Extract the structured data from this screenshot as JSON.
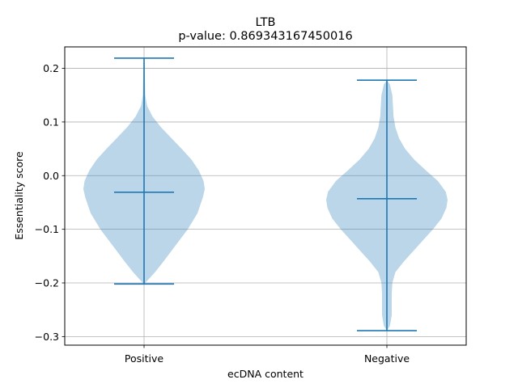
{
  "chart_data": {
    "type": "violin",
    "title": "LTB",
    "subtitle": "p-value: 0.869343167450016",
    "xlabel": "ecDNA content",
    "ylabel": "Essentiality score",
    "categories": [
      "Positive",
      "Negative"
    ],
    "ylim": [
      -0.316,
      0.24
    ],
    "yticks": [
      -0.3,
      -0.2,
      -0.1,
      0.0,
      0.1,
      0.2
    ],
    "ytick_labels": [
      "−0.3",
      "−0.2",
      "−0.1",
      "0.0",
      "0.1",
      "0.2"
    ],
    "grid": true,
    "colors": {
      "body": "#1f77b4",
      "body_alpha": 0.3,
      "lines": "#1f77b4",
      "grid": "#b0b0b0"
    },
    "series": [
      {
        "category": "Positive",
        "min": -0.202,
        "max": 0.219,
        "median": -0.031,
        "density": [
          [
            -0.202,
            0.0
          ],
          [
            -0.195,
            0.06
          ],
          [
            -0.18,
            0.18
          ],
          [
            -0.16,
            0.32
          ],
          [
            -0.13,
            0.52
          ],
          [
            -0.1,
            0.72
          ],
          [
            -0.07,
            0.88
          ],
          [
            -0.04,
            0.97
          ],
          [
            -0.025,
            1.0
          ],
          [
            -0.01,
            0.98
          ],
          [
            0.01,
            0.9
          ],
          [
            0.03,
            0.78
          ],
          [
            0.05,
            0.62
          ],
          [
            0.07,
            0.45
          ],
          [
            0.09,
            0.28
          ],
          [
            0.11,
            0.14
          ],
          [
            0.13,
            0.05
          ],
          [
            0.15,
            0.02
          ],
          [
            0.18,
            0.015
          ],
          [
            0.21,
            0.01
          ],
          [
            0.219,
            0.0
          ]
        ]
      },
      {
        "category": "Negative",
        "min": -0.289,
        "max": 0.178,
        "median": -0.043,
        "density": [
          [
            -0.289,
            0.0
          ],
          [
            -0.28,
            0.05
          ],
          [
            -0.26,
            0.08
          ],
          [
            -0.24,
            0.08
          ],
          [
            -0.22,
            0.08
          ],
          [
            -0.2,
            0.09
          ],
          [
            -0.18,
            0.14
          ],
          [
            -0.16,
            0.28
          ],
          [
            -0.14,
            0.44
          ],
          [
            -0.12,
            0.6
          ],
          [
            -0.1,
            0.76
          ],
          [
            -0.08,
            0.9
          ],
          [
            -0.06,
            0.98
          ],
          [
            -0.045,
            1.0
          ],
          [
            -0.03,
            0.97
          ],
          [
            -0.01,
            0.84
          ],
          [
            0.01,
            0.64
          ],
          [
            0.03,
            0.45
          ],
          [
            0.05,
            0.3
          ],
          [
            0.07,
            0.2
          ],
          [
            0.09,
            0.14
          ],
          [
            0.11,
            0.11
          ],
          [
            0.13,
            0.1
          ],
          [
            0.15,
            0.09
          ],
          [
            0.17,
            0.05
          ],
          [
            0.178,
            0.0
          ]
        ]
      }
    ]
  }
}
